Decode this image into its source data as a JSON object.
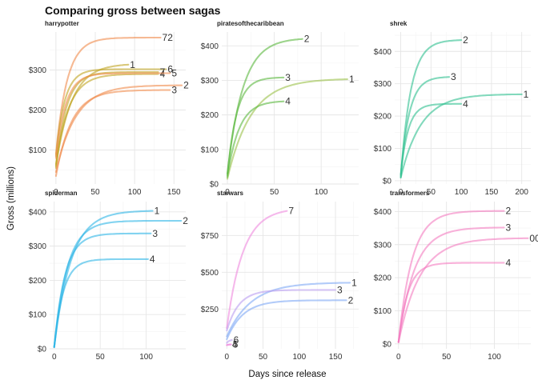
{
  "chart_data": {
    "type": "line",
    "title": "Comparing gross between sagas",
    "xlabel": "Days since release",
    "ylabel": "Gross (millions)",
    "panels": [
      {
        "name": "harrypotter",
        "color": "#bfa320",
        "alt_color": "#f08a4b",
        "xlim": [
          -8,
          165
        ],
        "ylim": [
          15,
          395
        ],
        "x_ticks": [
          0,
          50,
          100,
          150
        ],
        "y_ticks": [
          100,
          200,
          300
        ],
        "y_tick_labels": [
          "$100",
          "$200",
          "$300"
        ],
        "series": [
          {
            "name": "72",
            "end_day": 133,
            "start": 90,
            "final": 381,
            "rate": 0.07,
            "warm": 1
          },
          {
            "name": "1",
            "end_day": 92,
            "start": 60,
            "final": 316,
            "rate": 0.05,
            "warm": 0
          },
          {
            "name": "6",
            "end_day": 140,
            "start": 85,
            "final": 302,
            "rate": 0.09,
            "warm": 0
          },
          {
            "name": "7",
            "end_day": 130,
            "start": 55,
            "final": 295,
            "rate": 0.075,
            "warm": 0
          },
          {
            "name": "4",
            "end_day": 130,
            "start": 65,
            "final": 290,
            "rate": 0.06,
            "warm": 0
          },
          {
            "name": "5",
            "end_day": 145,
            "start": 80,
            "final": 292,
            "rate": 0.08,
            "warm": 1
          },
          {
            "name": "2",
            "end_day": 160,
            "start": 45,
            "final": 262,
            "rate": 0.04,
            "warm": 1
          },
          {
            "name": "3",
            "end_day": 145,
            "start": 35,
            "final": 250,
            "rate": 0.05,
            "warm": 1
          }
        ]
      },
      {
        "name": "piratesofthecaribbean",
        "color": "#5ab83e",
        "alt_color": "#9bc24a",
        "xlim": [
          -6,
          140
        ],
        "ylim": [
          0,
          440
        ],
        "x_ticks": [
          0,
          50,
          100
        ],
        "y_ticks": [
          0,
          100,
          200,
          300,
          400
        ],
        "y_tick_labels": [
          "$0",
          "$100",
          "$200",
          "$300",
          "$400"
        ],
        "series": [
          {
            "name": "2",
            "end_day": 80,
            "start": 30,
            "final": 423,
            "rate": 0.06,
            "warm": 0
          },
          {
            "name": "3",
            "end_day": 60,
            "start": 25,
            "final": 309,
            "rate": 0.1,
            "warm": 0
          },
          {
            "name": "1",
            "end_day": 128,
            "start": 15,
            "final": 305,
            "rate": 0.04,
            "warm": 1
          },
          {
            "name": "4",
            "end_day": 60,
            "start": 20,
            "final": 241,
            "rate": 0.08,
            "warm": 0
          }
        ]
      },
      {
        "name": "shrek",
        "color": "#2fbf8f",
        "alt_color": "#2fbf8f",
        "xlim": [
          -10,
          215
        ],
        "ylim": [
          -10,
          460
        ],
        "x_ticks": [
          0,
          50,
          100,
          150,
          200
        ],
        "y_ticks": [
          0,
          100,
          200,
          300,
          400
        ],
        "y_tick_labels": [
          "$0",
          "$100",
          "$200",
          "$300",
          "$400"
        ],
        "series": [
          {
            "name": "2",
            "end_day": 100,
            "start": 10,
            "final": 436,
            "rate": 0.06,
            "warm": 0
          },
          {
            "name": "3",
            "end_day": 80,
            "start": 15,
            "final": 322,
            "rate": 0.07,
            "warm": 0
          },
          {
            "name": "1",
            "end_day": 200,
            "start": 10,
            "final": 268,
            "rate": 0.03,
            "warm": 0
          },
          {
            "name": "4",
            "end_day": 100,
            "start": 20,
            "final": 238,
            "rate": 0.08,
            "warm": 0
          }
        ]
      },
      {
        "name": "spiderman",
        "color": "#2eb6e6",
        "alt_color": "#2eb6e6",
        "xlim": [
          -5,
          143
        ],
        "ylim": [
          0,
          430
        ],
        "x_ticks": [
          0,
          50,
          100
        ],
        "y_ticks": [
          0,
          100,
          200,
          300,
          400
        ],
        "y_tick_labels": [
          "$0",
          "$100",
          "$200",
          "$300",
          "$400"
        ],
        "series": [
          {
            "name": "1",
            "end_day": 107,
            "start": 5,
            "final": 404,
            "rate": 0.055,
            "warm": 0
          },
          {
            "name": "2",
            "end_day": 138,
            "start": 5,
            "final": 374,
            "rate": 0.07,
            "warm": 0
          },
          {
            "name": "3",
            "end_day": 105,
            "start": 5,
            "final": 337,
            "rate": 0.085,
            "warm": 0
          },
          {
            "name": "4",
            "end_day": 102,
            "start": 5,
            "final": 262,
            "rate": 0.1,
            "warm": 0
          }
        ]
      },
      {
        "name": "starwars",
        "color": "#7fa9f5",
        "alt_color": "#ee88dd",
        "xlim": [
          -7,
          182
        ],
        "ylim": [
          -20,
          980
        ],
        "x_ticks": [
          0,
          50,
          100,
          150
        ],
        "y_ticks": [
          250,
          500,
          750
        ],
        "y_tick_labels": [
          "$250",
          "$500",
          "$750"
        ],
        "series": [
          {
            "name": "7",
            "end_day": 83,
            "start": 120,
            "final": 936,
            "rate": 0.045,
            "warm": 2
          },
          {
            "name": "1",
            "end_day": 170,
            "start": 65,
            "final": 431,
            "rate": 0.03,
            "warm": 0
          },
          {
            "name": "3",
            "end_day": 150,
            "start": 105,
            "final": 380,
            "rate": 0.06,
            "warm": 3
          },
          {
            "name": "2",
            "end_day": 165,
            "start": 45,
            "final": 310,
            "rate": 0.045,
            "warm": 0
          },
          {
            "name": "6",
            "end_day": 7,
            "start": 20,
            "final": 42,
            "rate": 0.3,
            "warm": 3
          },
          {
            "name": "4",
            "end_day": 5,
            "start": 5,
            "final": 10,
            "rate": 0.4,
            "warm": 2
          },
          {
            "name": "5",
            "end_day": 6,
            "start": 5,
            "final": 10,
            "rate": 0.4,
            "warm": 2
          }
        ]
      },
      {
        "name": "transformers",
        "color": "#f47cc0",
        "alt_color": "#f47cc0",
        "xlim": [
          -4,
          138
        ],
        "ylim": [
          -15,
          430
        ],
        "x_ticks": [
          0,
          50,
          100
        ],
        "y_ticks": [
          0,
          100,
          200,
          300,
          400
        ],
        "y_tick_labels": [
          "$0",
          "$100",
          "$200",
          "$300",
          "$400"
        ],
        "series": [
          {
            "name": "2",
            "end_day": 110,
            "start": 5,
            "final": 402,
            "rate": 0.07,
            "warm": 0
          },
          {
            "name": "3",
            "end_day": 110,
            "start": 5,
            "final": 352,
            "rate": 0.06,
            "warm": 0
          },
          {
            "name": "00",
            "end_day": 135,
            "start": 5,
            "final": 320,
            "rate": 0.045,
            "warm": 0
          },
          {
            "name": "4",
            "end_day": 110,
            "start": 5,
            "final": 245,
            "rate": 0.1,
            "warm": 0
          }
        ]
      }
    ]
  }
}
